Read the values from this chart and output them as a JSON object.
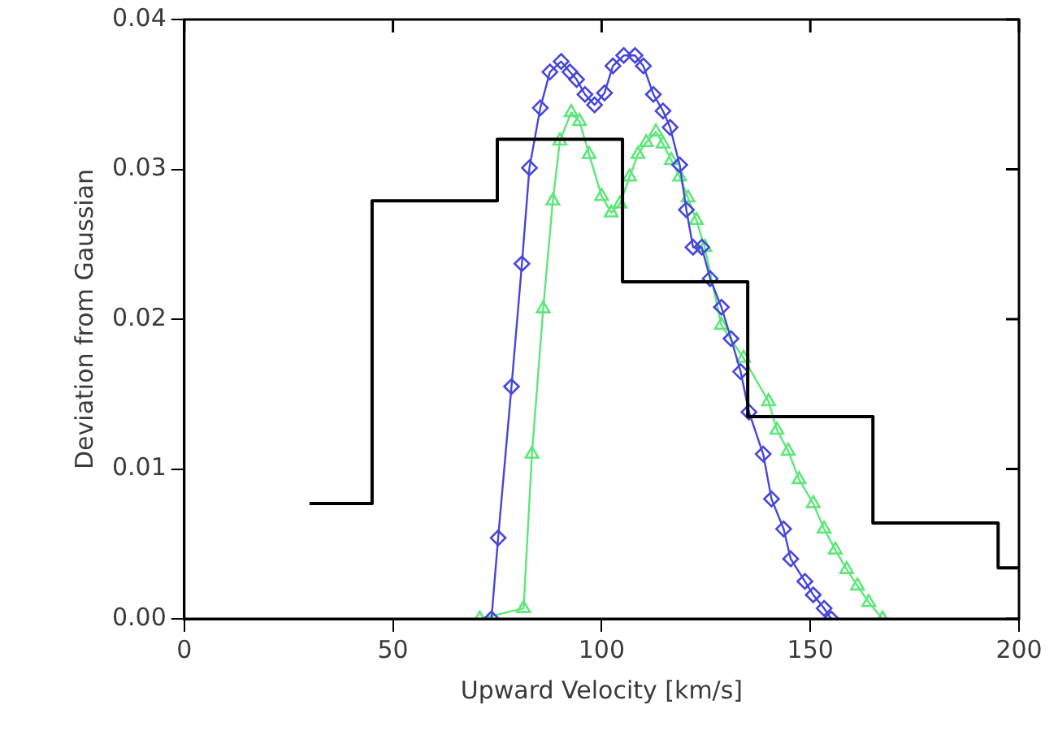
{
  "chart_data": {
    "type": "line",
    "xlabel": "Upward Velocity [km/s]",
    "ylabel": "Deviation from Gaussian",
    "xlim": [
      0,
      200
    ],
    "xticks": [
      0,
      50,
      100,
      150,
      200
    ],
    "ylim": [
      0,
      0.04
    ],
    "yticks": [
      {
        "value": 0,
        "label": "0.00"
      },
      {
        "value": 0.01,
        "label": "0.01"
      },
      {
        "value": 0.02,
        "label": "0.02"
      },
      {
        "value": 0.03,
        "label": "0.03"
      },
      {
        "value": 0.04,
        "label": "0.04"
      }
    ],
    "grid": false,
    "legend": false,
    "series": [
      {
        "type": "step",
        "color": "#000000",
        "marker": "none",
        "x": [
          30,
          45,
          75,
          105,
          135,
          165,
          195,
          200
        ],
        "values": [
          0.0077,
          0.0279,
          0.032,
          0.0225,
          0.0135,
          0.0064,
          0.0034,
          0.0034
        ]
      },
      {
        "type": "line",
        "color": "#4646dc",
        "marker": "diamond",
        "x": [
          73.6,
          75.2,
          78.4,
          80.9,
          82.7,
          85.3,
          87.6,
          90.3,
          92.4,
          94,
          96,
          98.3,
          100.7,
          102.7,
          105.3,
          108,
          110,
          112.4,
          114.7,
          116.4,
          118.7,
          120.3,
          121.9,
          124,
          126,
          128.7,
          131,
          133.3,
          135.3,
          138.7,
          140.7,
          143.6,
          145.3,
          148.7,
          150.7,
          153.3,
          155
        ],
        "values": [
          0,
          0.0054,
          0.0155,
          0.0237,
          0.0301,
          0.0341,
          0.0365,
          0.0372,
          0.0365,
          0.036,
          0.035,
          0.0343,
          0.0351,
          0.0369,
          0.0376,
          0.0376,
          0.0369,
          0.035,
          0.0339,
          0.0328,
          0.0303,
          0.0273,
          0.0248,
          0.0248,
          0.0227,
          0.0208,
          0.0187,
          0.0165,
          0.0138,
          0.011,
          0.008,
          0.006,
          0.004,
          0.0025,
          0.0016,
          0.0007,
          0
        ]
      },
      {
        "type": "line",
        "color": "#5ee67a",
        "marker": "triangle",
        "x": [
          70.8,
          81.3,
          83.3,
          86,
          88.3,
          90,
          92.7,
          94.7,
          97,
          100,
          102.3,
          104.4,
          106.7,
          108.7,
          110.7,
          113,
          114.7,
          116.7,
          118.7,
          120.7,
          122.7,
          124.7,
          128.7,
          134,
          140,
          142,
          144.7,
          147.3,
          150.7,
          153.3,
          156,
          158.7,
          161.3,
          164,
          167.3
        ],
        "values": [
          0,
          0.0007,
          0.011,
          0.0207,
          0.0279,
          0.0319,
          0.0338,
          0.0332,
          0.031,
          0.0282,
          0.0271,
          0.0277,
          0.0295,
          0.031,
          0.0318,
          0.0325,
          0.0317,
          0.0306,
          0.0295,
          0.0281,
          0.0266,
          0.0248,
          0.0196,
          0.0174,
          0.0145,
          0.0126,
          0.0112,
          0.0093,
          0.0077,
          0.006,
          0.0046,
          0.0033,
          0.0022,
          0.0011,
          0
        ]
      }
    ]
  }
}
